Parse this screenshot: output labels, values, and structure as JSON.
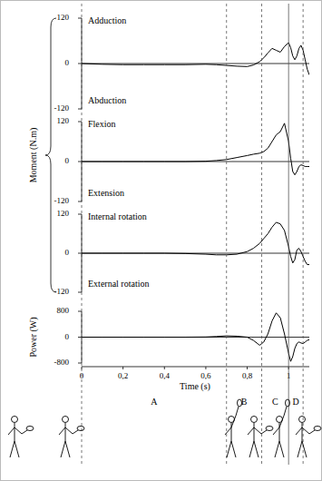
{
  "figure": {
    "y_label": "Moment (N.m)",
    "x_label": "Time (s)",
    "xlim": [
      0,
      1.1
    ],
    "xticks": [
      0,
      {
        "value": 0.2,
        "label": "0,2"
      },
      {
        "value": 0.4,
        "label": "0,4"
      },
      {
        "value": 0.6,
        "label": "0,6"
      },
      {
        "value": 0.8,
        "label": "0,8"
      },
      1
    ],
    "phase_bounds": [
      0,
      0.7,
      0.87,
      1.0,
      1.07
    ],
    "phase_line_styles": [
      "dashed",
      "dashed",
      "dashed",
      "solid",
      "dashed"
    ],
    "phases": [
      "A",
      "B",
      "C",
      "D"
    ]
  },
  "chart_data": [
    {
      "type": "line",
      "annotations": [
        "Adduction",
        "Abduction"
      ],
      "ylim": [
        -120,
        120
      ],
      "yticks": [
        -120,
        0,
        120
      ],
      "x": [
        0,
        0.1,
        0.2,
        0.3,
        0.4,
        0.5,
        0.6,
        0.65,
        0.7,
        0.75,
        0.8,
        0.83,
        0.86,
        0.88,
        0.9,
        0.92,
        0.94,
        0.96,
        0.98,
        1.0,
        1.01,
        1.02,
        1.03,
        1.04,
        1.05,
        1.06,
        1.07,
        1.08,
        1.09,
        1.1
      ],
      "series": [
        {
          "color": "#000000",
          "values": [
            0,
            -2,
            -3,
            -3,
            -3,
            -3,
            -2,
            -3,
            -5,
            -7,
            -8,
            -4,
            5,
            15,
            28,
            40,
            35,
            30,
            45,
            55,
            42,
            20,
            10,
            20,
            40,
            48,
            35,
            10,
            -15,
            -30
          ]
        }
      ]
    },
    {
      "type": "line",
      "annotations": [
        "Flexion",
        "Extension"
      ],
      "ylim": [
        -120,
        120
      ],
      "yticks": [
        -120,
        0,
        120
      ],
      "x": [
        0,
        0.1,
        0.2,
        0.3,
        0.4,
        0.5,
        0.6,
        0.65,
        0.7,
        0.75,
        0.8,
        0.83,
        0.86,
        0.88,
        0.9,
        0.92,
        0.94,
        0.96,
        0.98,
        1.0,
        1.01,
        1.02,
        1.03,
        1.04,
        1.05,
        1.06,
        1.07,
        1.08,
        1.09,
        1.1
      ],
      "series": [
        {
          "color": "#000000",
          "values": [
            0,
            0,
            0,
            0,
            0,
            0,
            1,
            3,
            6,
            12,
            18,
            22,
            25,
            30,
            40,
            60,
            80,
            90,
            115,
            60,
            10,
            -30,
            -40,
            -30,
            -15,
            -10,
            -12,
            -15,
            -15,
            -15
          ]
        }
      ]
    },
    {
      "type": "line",
      "annotations": [
        "Internal rotation",
        "External rotation"
      ],
      "ylim": [
        -120,
        120
      ],
      "yticks": [
        -120,
        0,
        120
      ],
      "x": [
        0,
        0.1,
        0.2,
        0.3,
        0.4,
        0.5,
        0.6,
        0.65,
        0.7,
        0.75,
        0.8,
        0.83,
        0.86,
        0.88,
        0.9,
        0.92,
        0.94,
        0.96,
        0.98,
        1.0,
        1.01,
        1.02,
        1.03,
        1.04,
        1.05,
        1.06,
        1.07,
        1.08,
        1.09,
        1.1
      ],
      "series": [
        {
          "color": "#000000",
          "values": [
            0,
            0,
            0,
            0,
            0,
            -1,
            -3,
            -5,
            -5,
            -3,
            5,
            15,
            30,
            45,
            60,
            80,
            95,
            90,
            70,
            20,
            -10,
            -30,
            -20,
            10,
            15,
            5,
            -10,
            -25,
            -35,
            -35
          ]
        }
      ]
    },
    {
      "type": "line",
      "y_label": "Power (W)",
      "ylim": [
        -800,
        800
      ],
      "yticks": [
        -800,
        0,
        800
      ],
      "x": [
        0,
        0.1,
        0.2,
        0.3,
        0.4,
        0.5,
        0.6,
        0.65,
        0.7,
        0.75,
        0.8,
        0.83,
        0.86,
        0.88,
        0.9,
        0.92,
        0.94,
        0.96,
        0.98,
        1.0,
        1.01,
        1.02,
        1.03,
        1.04,
        1.05,
        1.06,
        1.07,
        1.08,
        1.09,
        1.1
      ],
      "series": [
        {
          "color": "#000000",
          "values": [
            0,
            0,
            0,
            0,
            0,
            0,
            5,
            20,
            40,
            30,
            0,
            -100,
            -250,
            -150,
            100,
            500,
            750,
            600,
            100,
            -500,
            -750,
            -600,
            -350,
            -200,
            -150,
            -180,
            -200,
            -150,
            -100,
            -80
          ]
        }
      ]
    }
  ]
}
